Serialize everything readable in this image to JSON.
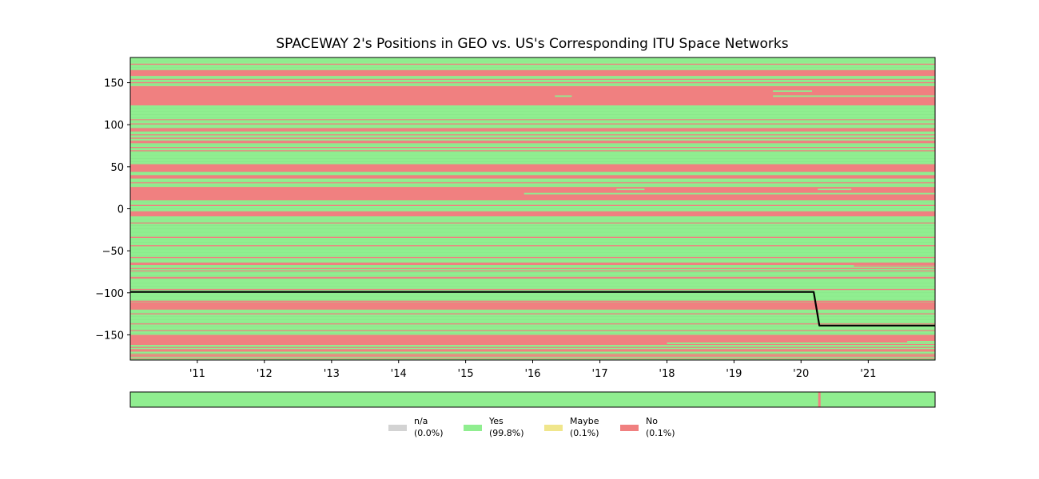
{
  "chart_data": {
    "type": "heatmap",
    "title": "SPACEWAY 2's Positions in GEO vs. US's Corresponding ITU Space Networks",
    "xlabel": "",
    "ylabel": "",
    "x_range": [
      "2010-01-01",
      "2021-12-31"
    ],
    "ylim": [
      -180,
      180
    ],
    "x_ticks": [
      {
        "date": "2011-01-01",
        "label": "'11"
      },
      {
        "date": "2012-01-01",
        "label": "'12"
      },
      {
        "date": "2013-01-01",
        "label": "'13"
      },
      {
        "date": "2014-01-01",
        "label": "'14"
      },
      {
        "date": "2015-01-01",
        "label": "'15"
      },
      {
        "date": "2016-01-01",
        "label": "'16"
      },
      {
        "date": "2017-01-01",
        "label": "'17"
      },
      {
        "date": "2018-01-01",
        "label": "'18"
      },
      {
        "date": "2019-01-01",
        "label": "'19"
      },
      {
        "date": "2020-01-01",
        "label": "'20"
      },
      {
        "date": "2021-01-01",
        "label": "'21"
      }
    ],
    "y_ticks": [
      150,
      100,
      50,
      0,
      -50,
      -100,
      -150
    ],
    "y_tick_labels": [
      "150",
      "100",
      "50",
      "0",
      "−50",
      "−100",
      "−150"
    ],
    "background_status": "Yes",
    "no_bands": [
      {
        "from": 158,
        "to": 165
      },
      {
        "from": 123,
        "to": 146
      },
      {
        "from": 92,
        "to": 96
      },
      {
        "from": 78,
        "to": 81
      },
      {
        "from": 44,
        "to": 53
      },
      {
        "from": 36,
        "to": 40
      },
      {
        "from": 10,
        "to": 26
      },
      {
        "from": -9,
        "to": -3
      },
      {
        "from": -67,
        "to": -64
      },
      {
        "from": -83,
        "to": -81
      },
      {
        "from": -120,
        "to": -111
      },
      {
        "from": -162,
        "to": -150
      },
      {
        "from": -170,
        "to": -167
      },
      {
        "from": -176,
        "to": -174
      }
    ],
    "thin_no_lines": [
      172,
      154,
      150,
      106,
      101,
      88,
      84,
      73,
      69,
      31,
      4,
      -17,
      -34,
      -44,
      -58,
      -71,
      -74,
      -96,
      -110,
      -125,
      -137,
      -145,
      -165,
      -173,
      -178
    ],
    "yes_segments": [
      {
        "y": 134,
        "start": "2016-05-01",
        "end": "2016-08-01"
      },
      {
        "y": 140,
        "start": "2019-08-01",
        "end": "2020-03-01"
      },
      {
        "y": 134,
        "start": "2019-08-01",
        "end": "2021-12-31"
      },
      {
        "y": 18,
        "start": "2015-11-15",
        "end": "2021-12-31"
      },
      {
        "y": 23,
        "start": "2017-04-01",
        "end": "2017-09-01"
      },
      {
        "y": 23,
        "start": "2020-04-01",
        "end": "2020-10-01"
      },
      {
        "y": 111,
        "start": "2015-11-15",
        "end": "2016-08-01"
      },
      {
        "y": -160,
        "start": "2018-01-01",
        "end": "2021-12-31"
      },
      {
        "y": -158,
        "start": "2021-08-01",
        "end": "2021-12-31"
      }
    ],
    "no_segments": [
      {
        "y": -68,
        "start": "2020-10-15",
        "end": "2021-12-31"
      }
    ],
    "position_series": {
      "name": "SPACEWAY 2 longitude",
      "points": [
        {
          "date": "2010-01-01",
          "lon": -99
        },
        {
          "date": "2020-03-10",
          "lon": -99
        },
        {
          "date": "2020-04-10",
          "lon": -139
        },
        {
          "date": "2021-12-31",
          "lon": -139
        }
      ]
    },
    "status_strip": {
      "base_status": "Yes",
      "markers": [
        {
          "date": "2020-04-10",
          "status": "No"
        }
      ]
    },
    "legend": [
      {
        "label": "n/a",
        "pct": "(0.0%)",
        "color": "#d3d3d3"
      },
      {
        "label": "Yes",
        "pct": "(99.8%)",
        "color": "#90ee90"
      },
      {
        "label": "Maybe",
        "pct": "(0.1%)",
        "color": "#f0e68c"
      },
      {
        "label": "No",
        "pct": "(0.1%)",
        "color": "#f08080"
      }
    ],
    "legend_position": "bottom-center",
    "grid": false
  },
  "colors": {
    "yes": "#90ee90",
    "no": "#f08080",
    "maybe": "#f0e68c",
    "na": "#d3d3d3",
    "position_line": "#000000"
  }
}
